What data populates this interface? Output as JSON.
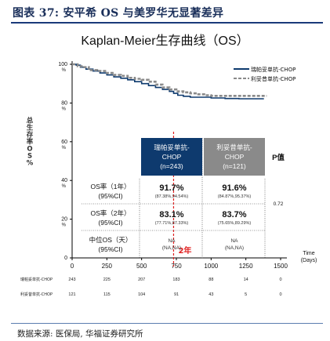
{
  "figure": {
    "number_title": "图表 37:  安平希 OS 与美罗华无显著差异",
    "source": "数据来源:  医保局, 华福证券研究所"
  },
  "chart_data": {
    "type": "line",
    "title": "Kaplan-Meier生存曲线（OS）",
    "ylabel": "总生存率OS%",
    "xlabel": "Time (Days)",
    "xlabel_lines": [
      "Time",
      "(Days)"
    ],
    "xlim": [
      0,
      1500
    ],
    "ylim": [
      0,
      100
    ],
    "x_ticks": [
      0,
      250,
      500,
      750,
      1000,
      1250,
      1500
    ],
    "y_ticks": [
      0,
      20,
      40,
      60,
      80,
      100
    ],
    "grid": false,
    "legend_position": "top-right",
    "series": [
      {
        "name": "瑞帕妥单抗-CHOP",
        "color": "#0e3a6e",
        "style": "solid",
        "points": [
          [
            0,
            100
          ],
          [
            30,
            99.5
          ],
          [
            60,
            98.5
          ],
          [
            100,
            97.5
          ],
          [
            150,
            96.5
          ],
          [
            200,
            95.5
          ],
          [
            250,
            94.5
          ],
          [
            300,
            93.5
          ],
          [
            350,
            92.8
          ],
          [
            400,
            92
          ],
          [
            450,
            91
          ],
          [
            500,
            90
          ],
          [
            550,
            89
          ],
          [
            600,
            88
          ],
          [
            650,
            87
          ],
          [
            700,
            86
          ],
          [
            730,
            85
          ],
          [
            760,
            84
          ],
          [
            800,
            83.5
          ],
          [
            850,
            83
          ],
          [
            900,
            83
          ],
          [
            1000,
            82.6
          ],
          [
            1100,
            82.3
          ],
          [
            1200,
            82.2
          ],
          [
            1300,
            82.2
          ],
          [
            1380,
            82.2
          ]
        ]
      },
      {
        "name": "利妥昔单抗-CHOP",
        "color": "#8a8a8a",
        "style": "dashed",
        "points": [
          [
            0,
            100
          ],
          [
            40,
            99
          ],
          [
            80,
            98.5
          ],
          [
            120,
            97
          ],
          [
            180,
            96.5
          ],
          [
            250,
            95.5
          ],
          [
            300,
            94.5
          ],
          [
            350,
            94
          ],
          [
            400,
            93
          ],
          [
            450,
            92.5
          ],
          [
            500,
            92
          ],
          [
            550,
            91
          ],
          [
            600,
            89.5
          ],
          [
            650,
            88
          ],
          [
            700,
            87
          ],
          [
            750,
            86
          ],
          [
            800,
            85.5
          ],
          [
            850,
            85
          ],
          [
            900,
            84.5
          ],
          [
            950,
            84
          ],
          [
            1000,
            83.7
          ],
          [
            1100,
            83.7
          ],
          [
            1200,
            83.7
          ],
          [
            1300,
            83.7
          ],
          [
            1400,
            83.7
          ]
        ]
      }
    ],
    "annotation": {
      "x": 730,
      "label": "2年",
      "color": "#e02020"
    },
    "risk_table": {
      "x": [
        0,
        250,
        500,
        750,
        1000,
        1250,
        1500
      ],
      "rows": [
        {
          "label": "瑞帕妥单抗-CHOP",
          "values": [
            "243",
            "225",
            "207",
            "183",
            "88",
            "14",
            "0"
          ]
        },
        {
          "label": "利妥昔单抗-CHOP",
          "values": [
            "121",
            "115",
            "104",
            "91",
            "43",
            "5",
            "0"
          ]
        }
      ]
    }
  },
  "summary_table": {
    "headers": [
      {
        "line1": "瑞帕妥单抗-",
        "line2": "CHOP",
        "line3": "(n=243)",
        "color": "#0e3a6e"
      },
      {
        "line1": "利妥昔单抗-",
        "line2": "CHOP",
        "line3": "(n=121)",
        "color": "#8a8a8a"
      }
    ],
    "p_header": "P值",
    "rows": [
      {
        "label1": "OS率（1年）",
        "label2": "(95%CI)",
        "a_main": "91.7%",
        "a_ci": "(87.38%,94.54%)",
        "b_main": "91.6%",
        "b_ci": "(84.87%,95.37%)"
      },
      {
        "label1": "OS率（2年）",
        "label2": "(95%CI)",
        "a_main": "83.1%",
        "a_ci": "(77.71%,87.33%)",
        "b_main": "83.7%",
        "b_ci": "(75.65%,89.29%)"
      },
      {
        "label1": "中位OS（天）",
        "label2": "(95%CI)",
        "a_main": "NA",
        "a_ci": "(NA,NA)",
        "b_main": "NA",
        "b_ci": "(NA,NA)"
      }
    ],
    "p_value": "0.72"
  }
}
